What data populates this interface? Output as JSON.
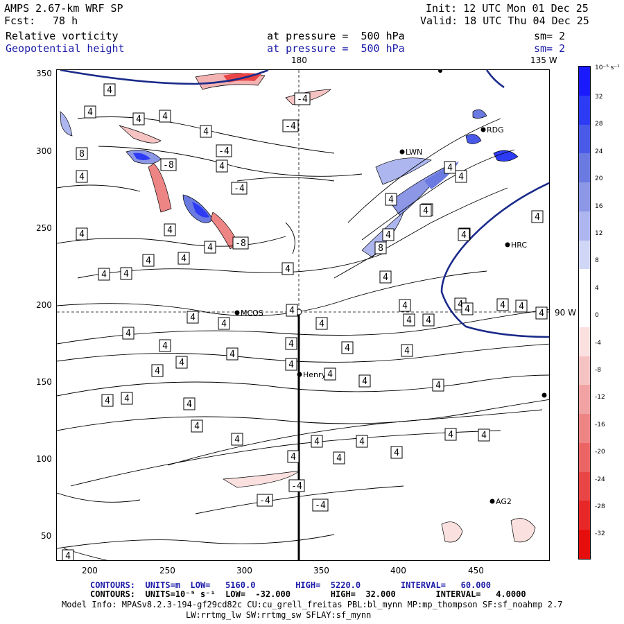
{
  "header": {
    "model": "AMPS 2.67-km WRF SP",
    "init": "Init: 12 UTC Mon 01 Dec 25",
    "fcst_label": "Fcst:",
    "fcst_value": "78 h",
    "valid": "Valid: 18 UTC Thu 04 Dec 25",
    "field1": "Relative vorticity",
    "field1_level": "at pressure =  500 hPa",
    "field1_sm": "sm= 2",
    "field2": "Geopotential height",
    "field2_level": "at pressure =  500 hPa",
    "field2_sm": "sm= 2"
  },
  "map": {
    "lon_top_label": "180",
    "lon_top_right_label": "135 W",
    "lon_right_label": "90 W",
    "x_ticks": [
      "200",
      "250",
      "300",
      "350",
      "400",
      "450"
    ],
    "y_ticks": [
      "350",
      "300",
      "250",
      "200",
      "150",
      "100",
      "50"
    ],
    "stations": [
      {
        "name": "RDG"
      },
      {
        "name": "LWN"
      },
      {
        "name": "HRC"
      },
      {
        "name": "MCOS"
      },
      {
        "name": "Henry"
      },
      {
        "name": "AG2"
      }
    ],
    "contour_labels": [
      "4",
      "-4",
      "8",
      "-8"
    ]
  },
  "colorbar": {
    "unit": "10⁻⁵ s⁻¹",
    "ticks": [
      "32",
      "28",
      "24",
      "20",
      "16",
      "12",
      "8",
      "4",
      "0",
      "-4",
      "-8",
      "-12",
      "-16",
      "-20",
      "-24",
      "-28",
      "-32"
    ],
    "colors": [
      "#1a1aff",
      "#2d3bf5",
      "#4a5ae8",
      "#6a7ae0",
      "#8c97e6",
      "#adb6ee",
      "#d0d6f6",
      "#ffffff",
      "#ffffff",
      "#fbe0e0",
      "#f6c3c3",
      "#f1a3a3",
      "#ee8585",
      "#ec6565",
      "#ea4545",
      "#e82828",
      "#e60d0d"
    ]
  },
  "footer": {
    "line1": "CONTOURS:  UNITS=m  LOW=   5160.0        HIGH=  5220.0        INTERVAL=   60.000",
    "line2": "CONTOURS:  UNITS=10⁻⁵ s⁻¹  LOW=  -32.000        HIGH=  32.000        INTERVAL=   4.0000",
    "line3": "Model Info: MPASv8.2.3-194-gf29cd82c CU:cu_grell_freitas PBL:bl_mynn MP:mp_thompson SF:sf_noahmp 2.7",
    "line4": "LW:rrtmg_lw SW:rrtmg_sw SFLAY:sf_mynn"
  }
}
